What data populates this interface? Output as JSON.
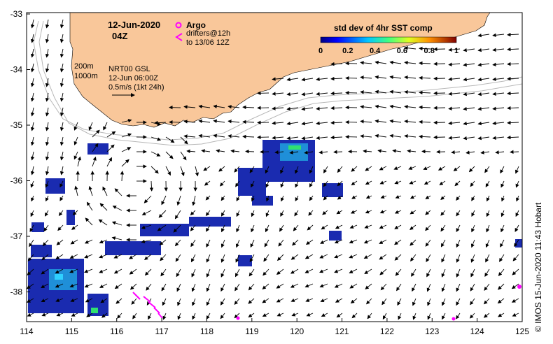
{
  "map": {
    "title_date": "12-Jun-2020",
    "title_time": "04Z",
    "legend_argo": "Argo",
    "legend_drifters_line1": "drifters@12h",
    "legend_drifters_line2": "to 13/06 12Z",
    "isobath_label_1": "200m",
    "isobath_label_2": "1000m",
    "product_label": "NRT00 GSL",
    "product_time": "12-Jun 06:00Z",
    "scale_label": "0.5m/s (1kt 24h)",
    "colorbar_title": "std dev of 4hr SST comp",
    "colorbar_ticks": [
      "0",
      "0.2",
      "0.4",
      "0.6",
      "0.8",
      "1"
    ],
    "credit": "IMOS 15-Jun-2020 11:43 Hobart",
    "copyright_symbol": "©",
    "lon_ticks": [
      "114",
      "115",
      "116",
      "117",
      "118",
      "119",
      "120",
      "121",
      "122",
      "123",
      "124",
      "125"
    ],
    "lat_ticks": [
      "-33",
      "-34",
      "-35",
      "-36",
      "-37",
      "-38"
    ],
    "land_color": "#f9c79a",
    "argo_color": "#ff00ff",
    "drifter_color": "#ff00ff",
    "isobath_color": "#b8b8b8"
  }
}
